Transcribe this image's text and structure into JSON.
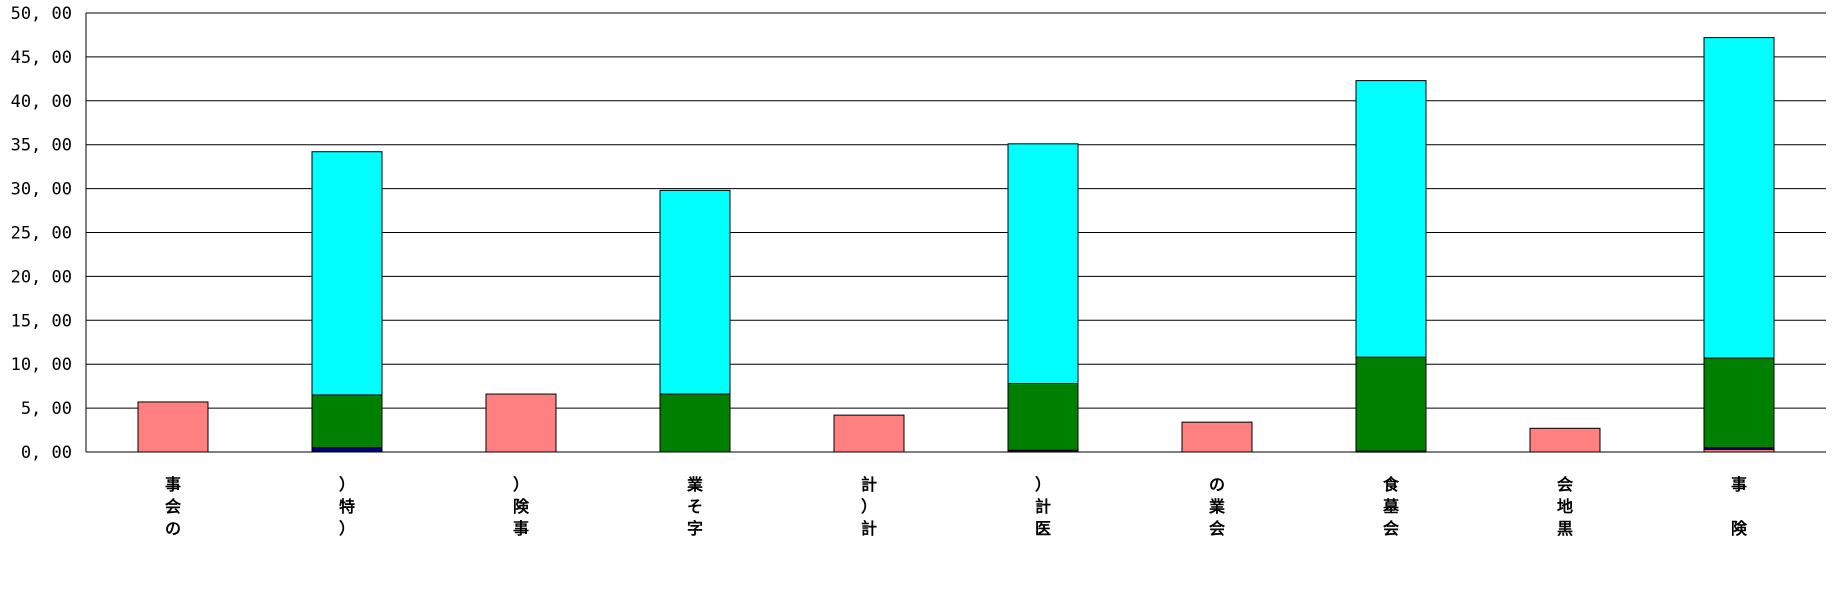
{
  "chart_data": {
    "type": "bar",
    "stacked": true,
    "ylim": [
      0,
      50
    ],
    "yticks": [
      "0.00",
      "5.00",
      "10.00",
      "15.00",
      "20.00",
      "25.00",
      "30.00",
      "35.00",
      "40.00",
      "45.00",
      "50.00"
    ],
    "grid": true,
    "categories": [
      [
        "事",
        "会",
        "の"
      ],
      [
        "）",
        "特",
        "）"
      ],
      [
        "）",
        "険",
        "事"
      ],
      [
        "業",
        "そ",
        "字"
      ],
      [
        "計",
        "）",
        "計"
      ],
      [
        "）",
        "計",
        "医"
      ],
      [
        "の",
        "業",
        "会"
      ],
      [
        "食",
        "墓",
        "会"
      ],
      [
        "会",
        "地",
        "黒"
      ],
      [
        "事",
        "",
        "険"
      ]
    ],
    "series": [
      {
        "color": "#ff8080",
        "values": [
          5.7,
          0,
          6.6,
          0,
          4.2,
          0,
          3.4,
          0,
          2.7,
          0.3
        ]
      },
      {
        "color": "#000080",
        "values": [
          0,
          0.5,
          0,
          0,
          0,
          0.2,
          0,
          0.1,
          0,
          0.2
        ]
      },
      {
        "color": "#008000",
        "values": [
          0,
          6.0,
          0,
          6.6,
          0,
          7.6,
          0,
          10.7,
          0,
          10.2
        ]
      },
      {
        "color": "#00ffff",
        "values": [
          0,
          27.7,
          0,
          23.2,
          0,
          27.3,
          0,
          31.5,
          0,
          36.5
        ]
      }
    ]
  }
}
